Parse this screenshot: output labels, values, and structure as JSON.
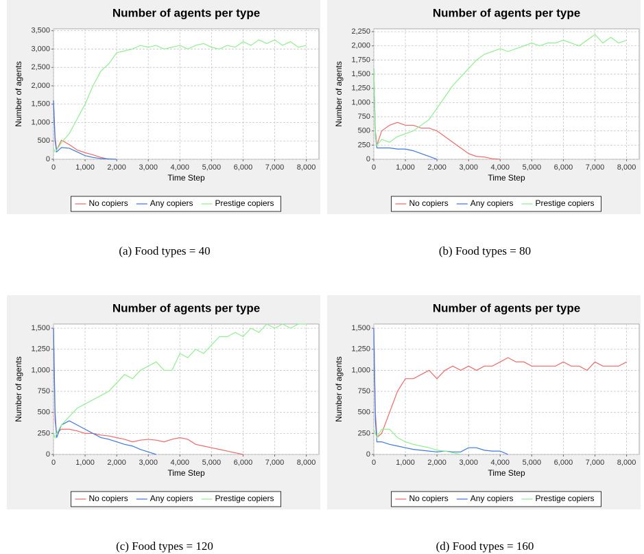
{
  "chart_data": [
    {
      "type": "line",
      "title": "Number of agents per type",
      "xlabel": "Time Step",
      "ylabel": "Number of agents",
      "caption": "(a) Food types = 40",
      "x": [
        0,
        50,
        100,
        250,
        500,
        750,
        1000,
        1250,
        1500,
        1750,
        2000,
        2250,
        2500,
        2750,
        3000,
        3250,
        3500,
        3750,
        4000,
        4250,
        4500,
        4750,
        5000,
        5250,
        5500,
        5750,
        6000,
        6250,
        6500,
        6750,
        7000,
        7250,
        7500,
        7750,
        8000
      ],
      "xlim": [
        0,
        8400
      ],
      "xticks": [
        0,
        {
          "value": 1000,
          "label": "1,000"
        },
        {
          "value": 2000,
          "label": "2,000"
        },
        {
          "value": 3000,
          "label": "3,000"
        },
        {
          "value": 4000,
          "label": "4,000"
        },
        {
          "value": 5000,
          "label": "5,000"
        },
        {
          "value": 6000,
          "label": "6,000"
        },
        {
          "value": 7000,
          "label": "7,000"
        },
        {
          "value": 8000,
          "label": "8,000"
        }
      ],
      "ylim": [
        0,
        3550
      ],
      "yticks": [
        0,
        500,
        {
          "value": 1000,
          "label": "1,000"
        },
        {
          "value": 1500,
          "label": "1,500"
        },
        {
          "value": 2000,
          "label": "2,000"
        },
        {
          "value": 2500,
          "label": "2,500"
        },
        {
          "value": 3000,
          "label": "3,000"
        },
        {
          "value": 3500,
          "label": "3,500"
        }
      ],
      "grid": true,
      "series": [
        {
          "name": "No copiers",
          "color": "#f06868",
          "values": [
            1600,
            600,
            250,
            520,
            400,
            250,
            180,
            120,
            50,
            0,
            null,
            null,
            null,
            null,
            null,
            null,
            null,
            null,
            null,
            null,
            null,
            null,
            null,
            null,
            null,
            null,
            null,
            null,
            null,
            null,
            null,
            null,
            null,
            null,
            null
          ]
        },
        {
          "name": "Any copiers",
          "color": "#3a78e0",
          "values": [
            1600,
            500,
            200,
            320,
            300,
            200,
            100,
            50,
            20,
            10,
            0,
            null,
            null,
            null,
            null,
            null,
            null,
            null,
            null,
            null,
            null,
            null,
            null,
            null,
            null,
            null,
            null,
            null,
            null,
            null,
            null,
            null,
            null,
            null,
            null
          ]
        },
        {
          "name": "Prestige copiers",
          "color": "#8ef08e",
          "values": [
            300,
            200,
            250,
            450,
            700,
            1100,
            1500,
            2000,
            2400,
            2600,
            2900,
            2950,
            3000,
            3100,
            3050,
            3100,
            3000,
            3050,
            3100,
            3000,
            3100,
            3150,
            3050,
            3000,
            3100,
            3050,
            3200,
            3100,
            3250,
            3150,
            3250,
            3100,
            3200,
            3050,
            3100
          ]
        }
      ]
    },
    {
      "type": "line",
      "title": "Number of agents per type",
      "xlabel": "Time Step",
      "ylabel": "Number of agents",
      "caption": "(b) Food types = 80",
      "x": [
        0,
        50,
        100,
        250,
        500,
        750,
        1000,
        1250,
        1500,
        1750,
        2000,
        2250,
        2500,
        2750,
        3000,
        3250,
        3500,
        3750,
        4000,
        4250,
        4500,
        4750,
        5000,
        5250,
        5500,
        5750,
        6000,
        6250,
        6500,
        6750,
        7000,
        7250,
        7500,
        7750,
        8000
      ],
      "xlim": [
        0,
        8400
      ],
      "xticks": [
        0,
        {
          "value": 1000,
          "label": "1,000"
        },
        {
          "value": 2000,
          "label": "2,000"
        },
        {
          "value": 3000,
          "label": "3,000"
        },
        {
          "value": 4000,
          "label": "4,000"
        },
        {
          "value": 5000,
          "label": "5,000"
        },
        {
          "value": 6000,
          "label": "6,000"
        },
        {
          "value": 7000,
          "label": "7,000"
        },
        {
          "value": 8000,
          "label": "8,000"
        }
      ],
      "ylim": [
        0,
        2300
      ],
      "yticks": [
        0,
        250,
        500,
        750,
        {
          "value": 1000,
          "label": "1,000"
        },
        {
          "value": 1250,
          "label": "1,250"
        },
        {
          "value": 1500,
          "label": "1,500"
        },
        {
          "value": 1750,
          "label": "1,750"
        },
        {
          "value": 2000,
          "label": "2,000"
        },
        {
          "value": 2250,
          "label": "2,250"
        }
      ],
      "grid": true,
      "series": [
        {
          "name": "No copiers",
          "color": "#f06868",
          "values": [
            1600,
            500,
            250,
            500,
            600,
            650,
            600,
            600,
            550,
            550,
            500,
            400,
            300,
            200,
            100,
            50,
            40,
            10,
            0,
            null,
            null,
            null,
            null,
            null,
            null,
            null,
            null,
            null,
            null,
            null,
            null,
            null,
            null,
            null,
            null
          ]
        },
        {
          "name": "Any copiers",
          "color": "#3a78e0",
          "values": [
            1600,
            400,
            200,
            200,
            200,
            180,
            180,
            150,
            100,
            50,
            0,
            null,
            null,
            null,
            null,
            null,
            null,
            null,
            null,
            null,
            null,
            null,
            null,
            null,
            null,
            null,
            null,
            null,
            null,
            null,
            null,
            null,
            null,
            null,
            null
          ]
        },
        {
          "name": "Prestige copiers",
          "color": "#8ef08e",
          "values": [
            1600,
            400,
            250,
            350,
            300,
            400,
            450,
            500,
            600,
            700,
            900,
            1100,
            1300,
            1450,
            1600,
            1750,
            1850,
            1900,
            1950,
            1900,
            1950,
            2000,
            2050,
            2000,
            2050,
            2050,
            2100,
            2050,
            2000,
            2100,
            2200,
            2050,
            2150,
            2050,
            2100
          ]
        }
      ]
    },
    {
      "type": "line",
      "title": "Number of agents per type",
      "xlabel": "Time Step",
      "ylabel": "Number of agents",
      "caption": "(c) Food types = 120",
      "x": [
        0,
        50,
        100,
        250,
        500,
        750,
        1000,
        1250,
        1500,
        1750,
        2000,
        2250,
        2500,
        2750,
        3000,
        3250,
        3500,
        3750,
        4000,
        4250,
        4500,
        4750,
        5000,
        5250,
        5500,
        5750,
        6000,
        6250,
        6500,
        6750,
        7000,
        7250,
        7500,
        7750,
        8000
      ],
      "xlim": [
        0,
        8400
      ],
      "xticks": [
        0,
        {
          "value": 1000,
          "label": "1,000"
        },
        {
          "value": 2000,
          "label": "2,000"
        },
        {
          "value": 3000,
          "label": "3,000"
        },
        {
          "value": 4000,
          "label": "4,000"
        },
        {
          "value": 5000,
          "label": "5,000"
        },
        {
          "value": 6000,
          "label": "6,000"
        },
        {
          "value": 7000,
          "label": "7,000"
        },
        {
          "value": 8000,
          "label": "8,000"
        }
      ],
      "ylim": [
        0,
        1550
      ],
      "yticks": [
        0,
        250,
        500,
        750,
        {
          "value": 1000,
          "label": "1,000"
        },
        {
          "value": 1250,
          "label": "1,250"
        },
        {
          "value": 1500,
          "label": "1,500"
        }
      ],
      "grid": true,
      "series": [
        {
          "name": "No copiers",
          "color": "#f06868",
          "values": [
            1500,
            400,
            250,
            300,
            300,
            280,
            250,
            250,
            230,
            220,
            200,
            180,
            150,
            170,
            180,
            170,
            150,
            180,
            200,
            180,
            120,
            100,
            80,
            60,
            40,
            20,
            0,
            null,
            null,
            null,
            null,
            null,
            null,
            null,
            null
          ]
        },
        {
          "name": "Any copiers",
          "color": "#3a78e0",
          "values": [
            1500,
            500,
            200,
            350,
            400,
            350,
            300,
            250,
            200,
            180,
            150,
            120,
            100,
            60,
            30,
            0,
            null,
            null,
            null,
            null,
            null,
            null,
            null,
            null,
            null,
            null,
            null,
            null,
            null,
            null,
            null,
            null,
            null,
            null,
            null
          ]
        },
        {
          "name": "Prestige copiers",
          "color": "#8ef08e",
          "values": [
            250,
            200,
            250,
            350,
            450,
            550,
            600,
            650,
            700,
            750,
            850,
            950,
            900,
            1000,
            1050,
            1100,
            1000,
            1000,
            1200,
            1150,
            1250,
            1200,
            1300,
            1400,
            1400,
            1450,
            1400,
            1500,
            1450,
            1550,
            1500,
            1550,
            1500,
            1550,
            1550
          ]
        }
      ]
    },
    {
      "type": "line",
      "title": "Number of agents per type",
      "xlabel": "Time Step",
      "ylabel": "Number of agents",
      "caption": "(d) Food types = 160",
      "x": [
        0,
        50,
        100,
        250,
        500,
        750,
        1000,
        1250,
        1500,
        1750,
        2000,
        2250,
        2500,
        2750,
        3000,
        3250,
        3500,
        3750,
        4000,
        4250,
        4500,
        4750,
        5000,
        5250,
        5500,
        5750,
        6000,
        6250,
        6500,
        6750,
        7000,
        7250,
        7500,
        7750,
        8000
      ],
      "xlim": [
        0,
        8400
      ],
      "xticks": [
        0,
        {
          "value": 1000,
          "label": "1,000"
        },
        {
          "value": 2000,
          "label": "2,000"
        },
        {
          "value": 3000,
          "label": "3,000"
        },
        {
          "value": 4000,
          "label": "4,000"
        },
        {
          "value": 5000,
          "label": "5,000"
        },
        {
          "value": 6000,
          "label": "6,000"
        },
        {
          "value": 7000,
          "label": "7,000"
        },
        {
          "value": 8000,
          "label": "8,000"
        }
      ],
      "ylim": [
        0,
        1550
      ],
      "yticks": [
        0,
        250,
        500,
        750,
        {
          "value": 1000,
          "label": "1,000"
        },
        {
          "value": 1250,
          "label": "1,250"
        },
        {
          "value": 1500,
          "label": "1,500"
        }
      ],
      "grid": true,
      "series": [
        {
          "name": "No copiers",
          "color": "#f06868",
          "values": [
            1500,
            500,
            200,
            250,
            500,
            750,
            900,
            900,
            950,
            1000,
            900,
            1000,
            1050,
            1000,
            1050,
            1000,
            1050,
            1050,
            1100,
            1150,
            1100,
            1100,
            1050,
            1050,
            1050,
            1050,
            1100,
            1050,
            1050,
            1000,
            1100,
            1050,
            1050,
            1050,
            1100
          ]
        },
        {
          "name": "Any copiers",
          "color": "#3a78e0",
          "values": [
            1500,
            400,
            150,
            150,
            120,
            100,
            80,
            60,
            50,
            40,
            30,
            40,
            30,
            30,
            80,
            80,
            50,
            40,
            40,
            0,
            null,
            null,
            null,
            null,
            null,
            null,
            null,
            null,
            null,
            null,
            null,
            null,
            null,
            null,
            null
          ]
        },
        {
          "name": "Prestige copiers",
          "color": "#8ef08e",
          "values": [
            300,
            250,
            200,
            300,
            300,
            200,
            150,
            120,
            100,
            80,
            50,
            40,
            20,
            0,
            null,
            null,
            null,
            null,
            null,
            null,
            null,
            null,
            null,
            null,
            null,
            null,
            null,
            null,
            null,
            null,
            null,
            null,
            null,
            null,
            null
          ]
        }
      ]
    }
  ]
}
